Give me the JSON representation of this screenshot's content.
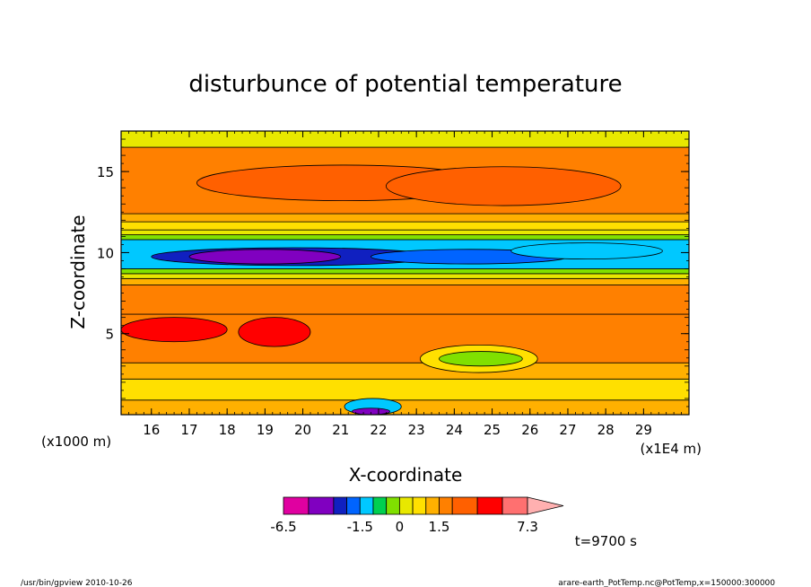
{
  "chart_data": {
    "type": "heatmap",
    "title": "disturbunce of potential temperature",
    "xlabel": "X-coordinate",
    "ylabel": "Z-coordinate",
    "x_unit": "(x1E4 m)",
    "y_unit": "(x1000 m)",
    "xlim": [
      15.2,
      30.2
    ],
    "ylim": [
      0,
      17.5
    ],
    "x_ticks": [
      "16",
      "17",
      "18",
      "19",
      "20",
      "21",
      "22",
      "23",
      "24",
      "25",
      "26",
      "27",
      "28",
      "29"
    ],
    "x_tick_values": [
      16,
      17,
      18,
      19,
      20,
      21,
      22,
      23,
      24,
      25,
      26,
      27,
      28,
      29
    ],
    "y_ticks": [
      "5",
      "10",
      "15"
    ],
    "y_tick_values": [
      5,
      10,
      15
    ],
    "colorbar": {
      "levels": [
        -6.5,
        -5.0,
        -3.5,
        -2.5,
        -1.5,
        -1.0,
        -0.5,
        0,
        0.5,
        1.0,
        1.5,
        2.5,
        3.5,
        5.0,
        7.3
      ],
      "colors": [
        "#e000a0",
        "#8000c0",
        "#1020c0",
        "#0064ff",
        "#00c8ff",
        "#00d050",
        "#80e000",
        "#e8e800",
        "#ffe000",
        "#ffb000",
        "#ff8000",
        "#ff6000",
        "#ff0000",
        "#ff7070",
        "#ffb0b0"
      ],
      "tick_labels": [
        "-6.5",
        "-1.5",
        "0",
        "1.5",
        "7.3"
      ],
      "tick_values": [
        -6.5,
        -1.5,
        0,
        1.5,
        7.3
      ]
    },
    "bands": [
      {
        "z0": 0,
        "z1": 0.9,
        "value": 1.2
      },
      {
        "z0": 0.9,
        "z1": 2.2,
        "value": 0.8
      },
      {
        "z0": 2.2,
        "z1": 3.2,
        "value": 1.3
      },
      {
        "z0": 3.2,
        "z1": 6.2,
        "value": 2.0
      },
      {
        "z0": 6.2,
        "z1": 8.0,
        "value": 2.0
      },
      {
        "z0": 8.0,
        "z1": 8.4,
        "value": 1.2
      },
      {
        "z0": 8.4,
        "z1": 8.7,
        "value": 0.3
      },
      {
        "z0": 8.7,
        "z1": 9.0,
        "value": -0.4
      },
      {
        "z0": 9.0,
        "z1": 10.8,
        "value": -1.4
      },
      {
        "z0": 10.8,
        "z1": 11.1,
        "value": -0.4
      },
      {
        "z0": 11.1,
        "z1": 11.4,
        "value": 0.3
      },
      {
        "z0": 11.4,
        "z1": 11.9,
        "value": 0.8
      },
      {
        "z0": 11.9,
        "z1": 12.4,
        "value": 1.3
      },
      {
        "z0": 12.4,
        "z1": 16.5,
        "value": 2.0
      },
      {
        "z0": 16.5,
        "z1": 17.5,
        "value": 0.3
      }
    ],
    "features": [
      {
        "x0": 16.0,
        "x1": 23.5,
        "z0": 9.2,
        "z1": 10.3,
        "value": -2.8
      },
      {
        "x0": 17.0,
        "x1": 21.0,
        "z0": 9.3,
        "z1": 10.2,
        "value": -4.2
      },
      {
        "x0": 21.8,
        "x1": 27.0,
        "z0": 9.3,
        "z1": 10.2,
        "value": -2.0
      },
      {
        "x0": 25.5,
        "x1": 29.5,
        "z0": 9.6,
        "z1": 10.6,
        "value": -1.2
      },
      {
        "x0": 15.2,
        "x1": 18.0,
        "z0": 4.5,
        "z1": 6.0,
        "value": 4.0
      },
      {
        "x0": 18.3,
        "x1": 20.2,
        "z0": 4.2,
        "z1": 6.0,
        "value": 4.0
      },
      {
        "x0": 23.1,
        "x1": 26.2,
        "z0": 2.6,
        "z1": 4.3,
        "value": 0.6
      },
      {
        "x0": 23.6,
        "x1": 25.8,
        "z0": 3.0,
        "z1": 3.9,
        "value": -0.3
      },
      {
        "x0": 17.2,
        "x1": 25.0,
        "z0": 13.2,
        "z1": 15.4,
        "value": 3.0
      },
      {
        "x0": 22.2,
        "x1": 28.4,
        "z0": 12.9,
        "z1": 15.3,
        "value": 3.0
      },
      {
        "x0": 21.1,
        "x1": 22.6,
        "z0": 0,
        "z1": 1.0,
        "value": -1.2
      },
      {
        "x0": 21.3,
        "x1": 22.3,
        "z0": 0,
        "z1": 0.4,
        "value": -5.0
      }
    ],
    "time_label": "t=9700 s"
  },
  "footer": {
    "left": "/usr/bin/gpview   2010-10-26",
    "right": "arare-earth_PotTemp.nc@PotTemp,x=150000:300000"
  }
}
